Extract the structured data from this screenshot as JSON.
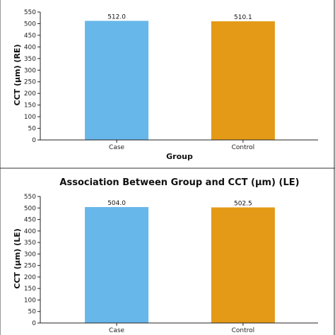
{
  "chart_data": [
    {
      "type": "bar",
      "title": "",
      "xlabel": "Group",
      "ylabel": "CCT (μm) (RE)",
      "categories": [
        "Case",
        "Control"
      ],
      "values": [
        512.0,
        510.1
      ],
      "data_labels": [
        "512.0",
        "510.1"
      ],
      "colors": [
        "#67b7ea",
        "#e49a16"
      ],
      "ylim": [
        0,
        550
      ],
      "yticks": [
        0,
        50,
        100,
        150,
        200,
        250,
        300,
        350,
        400,
        450,
        500,
        550
      ],
      "grid": false,
      "legend": "none"
    },
    {
      "type": "bar",
      "title": "Association Between Group and CCT (μm) (LE)",
      "xlabel": "",
      "ylabel": "CCT (μm) (LE)",
      "categories": [
        "Case",
        "Control"
      ],
      "values": [
        504.0,
        502.5
      ],
      "data_labels": [
        "504.0",
        "502.5"
      ],
      "colors": [
        "#67b7ea",
        "#e49a16"
      ],
      "ylim": [
        0,
        550
      ],
      "yticks": [
        0,
        50,
        100,
        150,
        200,
        250,
        300,
        350,
        400,
        450,
        500,
        550
      ],
      "grid": false,
      "legend": "none"
    }
  ]
}
